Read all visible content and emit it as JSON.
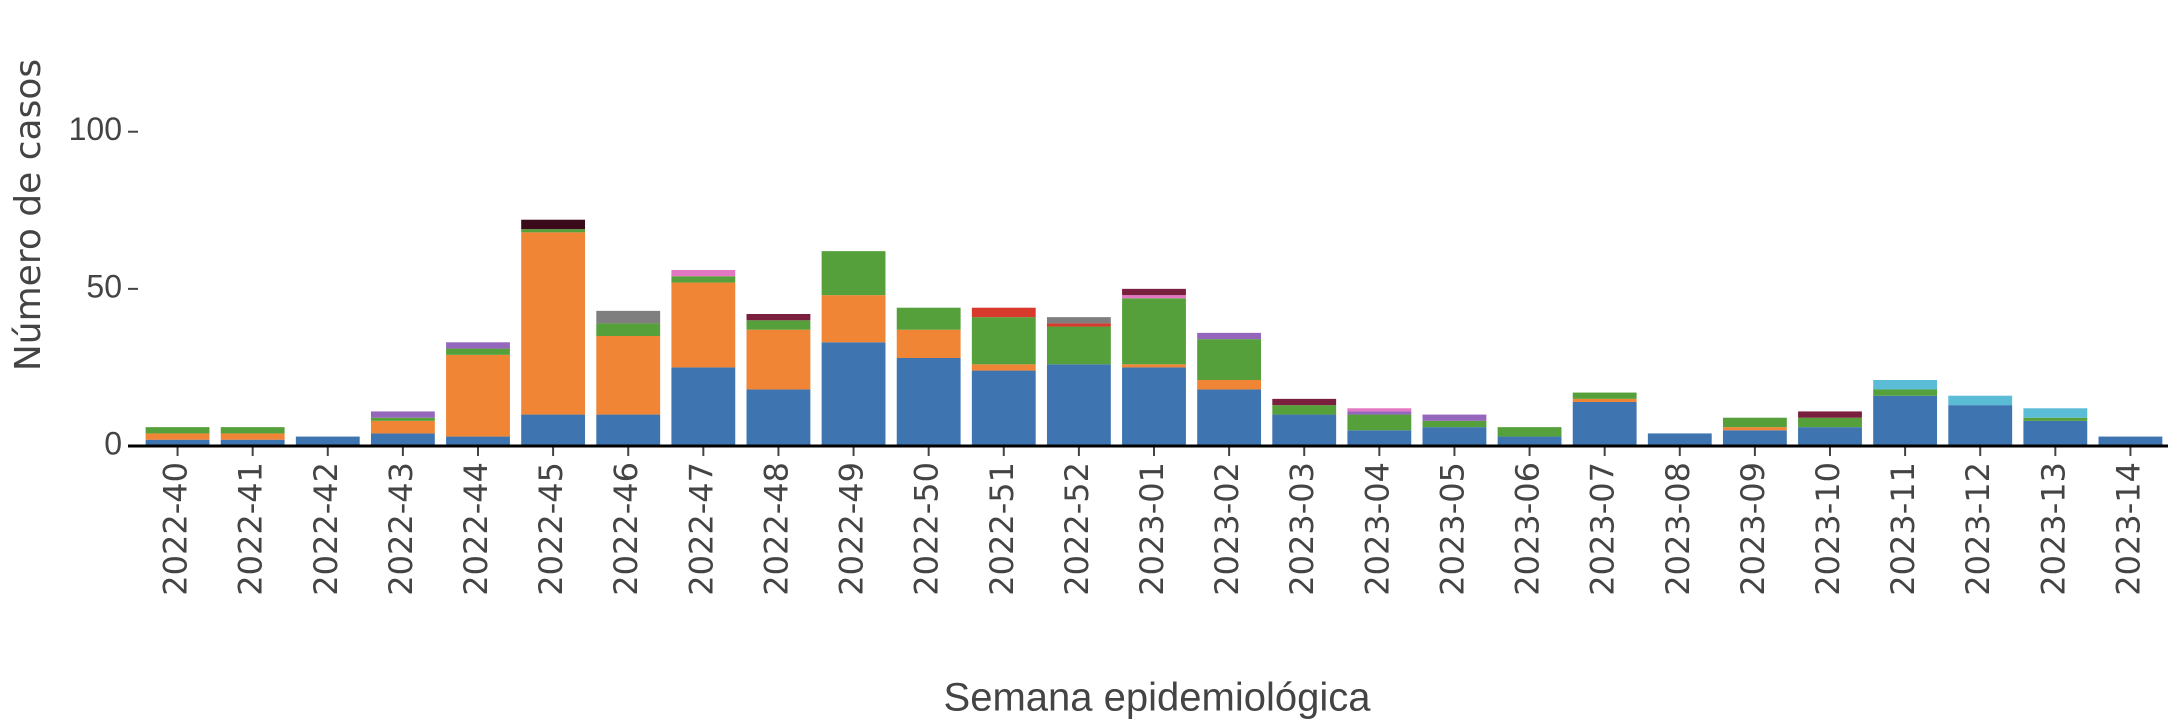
{
  "chart_data": {
    "type": "stacked_bar",
    "x_label": "Semana epidemiológica",
    "y_label": "Número de casos",
    "categories": [
      "2022-40",
      "2022-41",
      "2022-42",
      "2022-43",
      "2022-44",
      "2022-45",
      "2022-46",
      "2022-47",
      "2022-48",
      "2022-49",
      "2022-50",
      "2022-51",
      "2022-52",
      "2023-01",
      "2023-02",
      "2023-03",
      "2023-04",
      "2023-05",
      "2023-06",
      "2023-07",
      "2023-08",
      "2023-09",
      "2023-10",
      "2023-11",
      "2023-12",
      "2023-13",
      "2023-14"
    ],
    "series": [
      {
        "color": "#3e74b0",
        "values": [
          2,
          2,
          3,
          4,
          3,
          10,
          10,
          25,
          18,
          33,
          28,
          24,
          26,
          25,
          18,
          10,
          5,
          6,
          3,
          14,
          4,
          5,
          6,
          16,
          13,
          8,
          3
        ]
      },
      {
        "color": "#ef8535",
        "values": [
          2,
          2,
          0,
          4,
          26,
          58,
          25,
          27,
          19,
          15,
          9,
          2,
          0,
          1,
          3,
          0,
          0,
          0,
          0,
          1,
          0,
          1,
          0,
          0,
          0,
          0,
          0
        ]
      },
      {
        "color": "#55a03a",
        "values": [
          2,
          2,
          0,
          1,
          2,
          1,
          4,
          2,
          3,
          14,
          7,
          15,
          12,
          21,
          13,
          3,
          5,
          2,
          3,
          2,
          0,
          3,
          3,
          2,
          0,
          1,
          0
        ]
      },
      {
        "color": "#d73a2c",
        "values": [
          0,
          0,
          0,
          0,
          0,
          0,
          0,
          0,
          0,
          0,
          0,
          3,
          1,
          0,
          0,
          0,
          0,
          0,
          0,
          0,
          0,
          0,
          0,
          0,
          0,
          0,
          0
        ]
      },
      {
        "color": "#7f7f7f",
        "values": [
          0,
          0,
          0,
          0,
          0,
          0,
          4,
          0,
          0,
          0,
          0,
          0,
          2,
          0,
          0,
          0,
          0,
          0,
          0,
          0,
          0,
          0,
          0,
          0,
          0,
          0,
          0
        ]
      },
      {
        "color": "#9467bd",
        "values": [
          0,
          0,
          0,
          2,
          2,
          0,
          0,
          0,
          0,
          0,
          0,
          0,
          0,
          0,
          2,
          0,
          1,
          2,
          0,
          0,
          0,
          0,
          0,
          0,
          0,
          0,
          0
        ]
      },
      {
        "color": "#e377c2",
        "values": [
          0,
          0,
          0,
          0,
          0,
          0,
          0,
          2,
          0,
          0,
          0,
          0,
          0,
          1,
          0,
          0,
          1,
          0,
          0,
          0,
          0,
          0,
          0,
          0,
          0,
          0,
          0
        ]
      },
      {
        "color": "#7b1f3f",
        "values": [
          0,
          0,
          0,
          0,
          0,
          0,
          0,
          0,
          2,
          0,
          0,
          0,
          0,
          2,
          0,
          2,
          0,
          0,
          0,
          0,
          0,
          0,
          2,
          0,
          0,
          0,
          0
        ]
      },
      {
        "color": "#3a0a1a",
        "values": [
          0,
          0,
          0,
          0,
          0,
          3,
          0,
          0,
          0,
          0,
          0,
          0,
          0,
          0,
          0,
          0,
          0,
          0,
          0,
          0,
          0,
          0,
          0,
          0,
          0,
          0,
          0
        ]
      },
      {
        "color": "#5bbcd6",
        "values": [
          0,
          0,
          0,
          0,
          0,
          0,
          0,
          0,
          0,
          0,
          0,
          0,
          0,
          0,
          0,
          0,
          0,
          0,
          0,
          0,
          0,
          0,
          0,
          3,
          3,
          3,
          0
        ]
      }
    ],
    "ylim": [
      0,
      140
    ],
    "yticks": [
      0,
      50,
      100
    ]
  }
}
